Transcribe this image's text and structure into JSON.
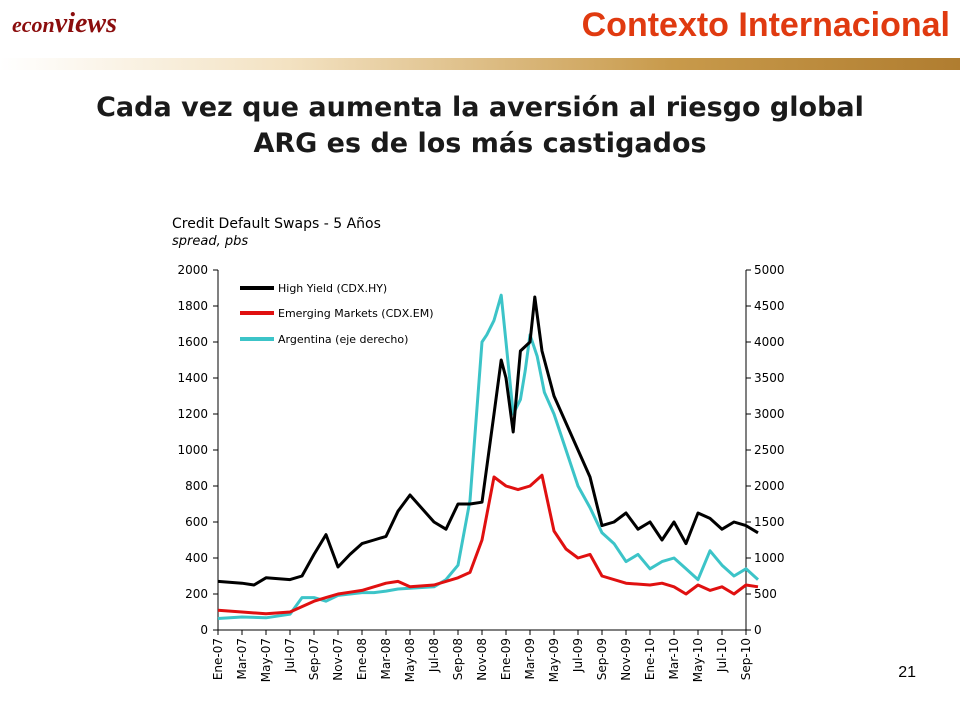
{
  "header": {
    "brand_econ": "econ",
    "brand_views": "views",
    "section_title": "Contexto Internacional"
  },
  "slide": {
    "title_line1": "Cada vez que aumenta la aversión al riesgo global",
    "title_line2": "ARG es de los más castigados",
    "page_number": "21"
  },
  "colors": {
    "high_yield": "#000000",
    "emerging": "#e01010",
    "argentina": "#3cc4c8",
    "title_accent": "#e03a10"
  },
  "chart_data": {
    "type": "line",
    "title": "Credit Default Swaps - 5 Años",
    "subtitle": "spread, pbs",
    "legend_position": "top-left",
    "grid": false,
    "x_categories": [
      "Ene-07",
      "Mar-07",
      "May-07",
      "Jul-07",
      "Sep-07",
      "Nov-07",
      "Ene-08",
      "Mar-08",
      "May-08",
      "Jul-08",
      "Sep-08",
      "Nov-08",
      "Ene-09",
      "Mar-09",
      "May-09",
      "Jul-09",
      "Sep-09",
      "Nov-09",
      "Ene-10",
      "Mar-10",
      "May-10",
      "Jul-10",
      "Sep-10"
    ],
    "y_left": {
      "range": [
        0,
        2000
      ],
      "ticks": [
        "0",
        "200",
        "400",
        "600",
        "800",
        "1000",
        "1200",
        "1400",
        "1600",
        "1800",
        "2000"
      ]
    },
    "y_right": {
      "range": [
        0,
        5000
      ],
      "ticks": [
        "0",
        "500",
        "1000",
        "1500",
        "2000",
        "2500",
        "3000",
        "3500",
        "4000",
        "4500",
        "5000"
      ]
    },
    "series": [
      {
        "name": "High Yield (CDX.HY)",
        "axis": "left",
        "color": "#000000",
        "x": [
          0,
          1,
          1.5,
          2,
          3,
          3.5,
          4,
          4.5,
          5,
          5.5,
          6,
          6.5,
          7,
          7.5,
          8,
          9,
          9.5,
          10,
          10.5,
          11,
          11.5,
          11.8,
          12,
          12.3,
          12.6,
          13,
          13.2,
          13.5,
          13.8,
          14,
          14.5,
          15,
          15.5,
          16,
          16.5,
          17,
          17.5,
          18,
          18.5,
          19,
          19.5,
          20,
          20.5,
          21,
          21.5,
          22,
          22.5
        ],
        "y": [
          270,
          260,
          250,
          290,
          280,
          300,
          420,
          530,
          350,
          420,
          480,
          500,
          520,
          660,
          750,
          600,
          560,
          700,
          700,
          710,
          1200,
          1500,
          1400,
          1100,
          1550,
          1600,
          1850,
          1550,
          1400,
          1300,
          1150,
          1000,
          850,
          580,
          600,
          650,
          560,
          600,
          500,
          600,
          480,
          650,
          620,
          560,
          600,
          580,
          540
        ]
      },
      {
        "name": "Emerging Markets (CDX.EM)",
        "axis": "left",
        "color": "#e01010",
        "x": [
          0,
          1,
          2,
          3,
          3.5,
          4,
          4.5,
          5,
          5.5,
          6,
          6.5,
          7,
          7.5,
          8,
          9,
          10,
          10.5,
          11,
          11.5,
          12,
          12.5,
          13,
          13.5,
          14,
          14.5,
          15,
          15.5,
          16,
          17,
          18,
          18.5,
          19,
          19.5,
          20,
          20.5,
          21,
          21.5,
          22,
          22.5
        ],
        "y": [
          110,
          100,
          90,
          100,
          130,
          160,
          180,
          200,
          210,
          220,
          240,
          260,
          270,
          240,
          250,
          290,
          320,
          500,
          850,
          800,
          780,
          800,
          860,
          550,
          450,
          400,
          420,
          300,
          260,
          250,
          260,
          240,
          200,
          250,
          220,
          240,
          200,
          250,
          240
        ]
      },
      {
        "name": "Argentina (eje derecho)",
        "axis": "right",
        "color": "#3cc4c8",
        "x": [
          0,
          1,
          2,
          3,
          3.5,
          4,
          4.5,
          5,
          5.5,
          6,
          6.5,
          7,
          7.5,
          8,
          9,
          9.5,
          10,
          10.5,
          11,
          11.2,
          11.5,
          11.8,
          12,
          12.3,
          12.6,
          12.8,
          13,
          13.3,
          13.6,
          14,
          14.5,
          15,
          15.5,
          16,
          16.5,
          17,
          17.5,
          18,
          18.5,
          19,
          19.5,
          20,
          20.5,
          21,
          21.5,
          22,
          22.5
        ],
        "y": [
          160,
          180,
          170,
          220,
          450,
          450,
          400,
          480,
          500,
          520,
          520,
          540,
          570,
          580,
          600,
          700,
          900,
          1800,
          4000,
          4100,
          4300,
          4650,
          4000,
          3000,
          3200,
          3600,
          4100,
          3800,
          3300,
          3000,
          2500,
          2000,
          1700,
          1350,
          1200,
          950,
          1050,
          850,
          950,
          1000,
          850,
          700,
          1100,
          900,
          750,
          850,
          700
        ]
      }
    ]
  }
}
